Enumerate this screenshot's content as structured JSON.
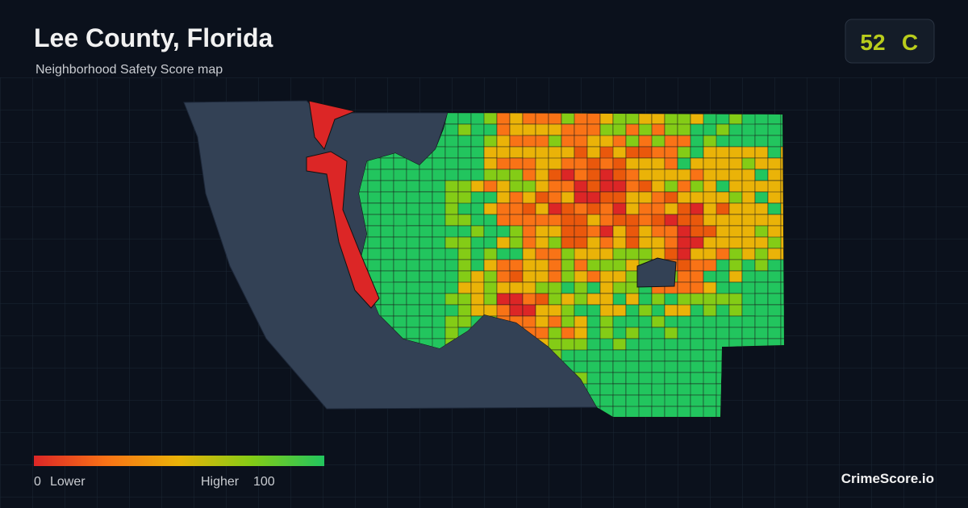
{
  "header": {
    "title": "Lee County, Florida",
    "subtitle": "Neighborhood Safety Score map"
  },
  "score": {
    "value": "52",
    "grade": "C"
  },
  "legend": {
    "min": 0,
    "min_label": "Lower",
    "max_label": "Higher",
    "max": 100
  },
  "brand": "CrimeScore.io"
}
